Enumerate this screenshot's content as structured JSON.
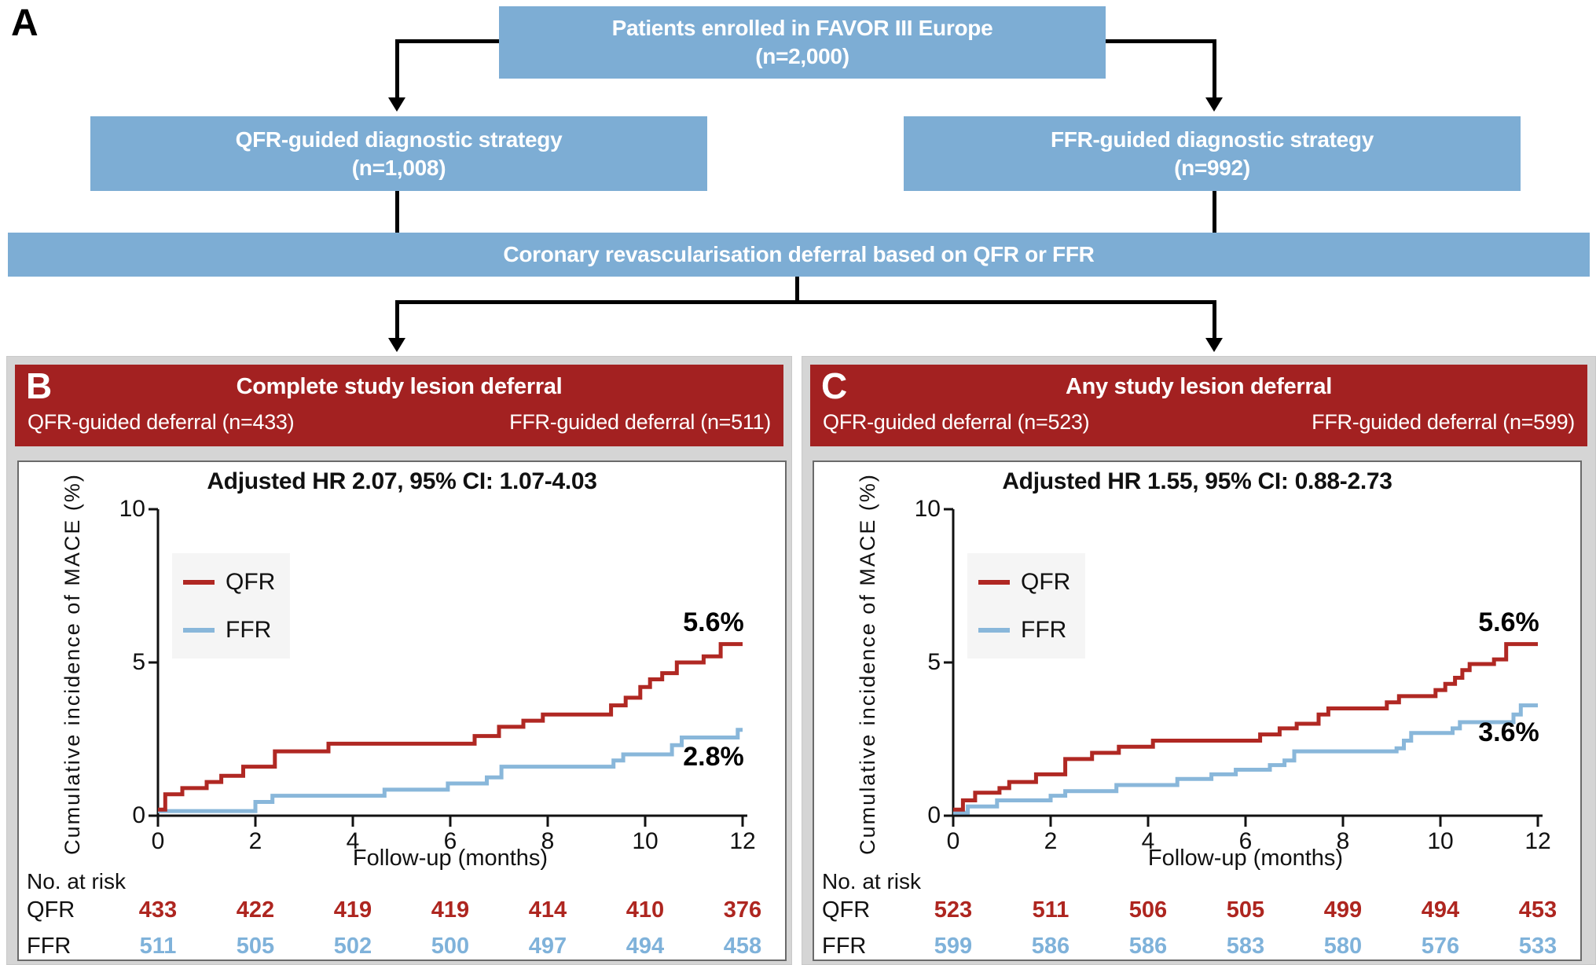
{
  "figure": {
    "panel_a_label": "A",
    "flowchart": {
      "top_box": {
        "line1": "Patients enrolled in FAVOR III Europe",
        "line2": "(n=2,000)"
      },
      "left_box": {
        "line1": "QFR-guided diagnostic strategy",
        "line2": "(n=1,008)"
      },
      "right_box": {
        "line1": "FFR-guided diagnostic strategy",
        "line2": "(n=992)"
      },
      "wide_box": {
        "line1": "Coronary revascularisation deferral based on QFR or FFR"
      }
    }
  },
  "colors": {
    "flow_blue": "#7dadd4",
    "header_red": "#a32121",
    "qfr_red": "#b02823",
    "ffr_blue": "#89b7da",
    "panel_gray": "#d5d5d5",
    "legend_bg": "#f5f5f5"
  },
  "panels": [
    {
      "label": "B",
      "title": "Complete study lesion deferral",
      "left_sub": "QFR-guided deferral (n=433)",
      "right_sub": "FFR-guided deferral (n=511)"
    },
    {
      "label": "C",
      "title": "Any study lesion deferral",
      "left_sub": "QFR-guided deferral (n=523)",
      "right_sub": "FFR-guided deferral (n=599)"
    }
  ],
  "chart_data": [
    {
      "type": "line",
      "subtype": "kaplan-meier-step",
      "title": "Adjusted HR 2.07, 95% CI: 1.07-4.03",
      "xlabel": "Follow-up (months)",
      "ylabel": "Cumulative incidence of MACE (%)",
      "xlim": [
        0,
        12
      ],
      "ylim": [
        0,
        10
      ],
      "xticks": [
        0,
        2,
        4,
        6,
        8,
        10,
        12
      ],
      "yticks": [
        0,
        5,
        10
      ],
      "legend_position": "upper-left-inside",
      "grid": false,
      "series": [
        {
          "name": "QFR",
          "color": "#b02823",
          "end_label": "5.6%",
          "end_value_pct": 5.6,
          "points": [
            [
              0,
              0.2
            ],
            [
              0.15,
              0.7
            ],
            [
              0.5,
              0.9
            ],
            [
              1.0,
              1.1
            ],
            [
              1.3,
              1.3
            ],
            [
              1.75,
              1.6
            ],
            [
              2.4,
              2.1
            ],
            [
              3.5,
              2.35
            ],
            [
              6.5,
              2.6
            ],
            [
              7.0,
              2.9
            ],
            [
              7.5,
              3.1
            ],
            [
              7.9,
              3.3
            ],
            [
              9.3,
              3.6
            ],
            [
              9.6,
              3.85
            ],
            [
              9.9,
              4.2
            ],
            [
              10.1,
              4.45
            ],
            [
              10.35,
              4.65
            ],
            [
              10.65,
              5.0
            ],
            [
              11.2,
              5.2
            ],
            [
              11.55,
              5.6
            ],
            [
              12,
              5.6
            ]
          ]
        },
        {
          "name": "FFR",
          "color": "#89b7da",
          "end_label": "2.8%",
          "end_value_pct": 2.8,
          "points": [
            [
              0,
              0.15
            ],
            [
              2.0,
              0.45
            ],
            [
              2.35,
              0.65
            ],
            [
              4.65,
              0.85
            ],
            [
              5.95,
              1.05
            ],
            [
              6.75,
              1.25
            ],
            [
              7.05,
              1.6
            ],
            [
              9.35,
              1.8
            ],
            [
              9.55,
              2.0
            ],
            [
              10.55,
              2.3
            ],
            [
              10.75,
              2.55
            ],
            [
              11.9,
              2.8
            ],
            [
              12,
              2.8
            ]
          ]
        }
      ],
      "risk_table": {
        "header": "No. at risk",
        "rows": [
          {
            "name": "QFR",
            "color": "#ae2620",
            "values": [
              433,
              422,
              419,
              419,
              414,
              410,
              376
            ]
          },
          {
            "name": "FFR",
            "color": "#7fb2da",
            "values": [
              511,
              505,
              502,
              500,
              497,
              494,
              458
            ]
          }
        ]
      }
    },
    {
      "type": "line",
      "subtype": "kaplan-meier-step",
      "title": "Adjusted HR 1.55, 95% CI: 0.88-2.73",
      "xlabel": "Follow-up (months)",
      "ylabel": "Cumulative incidence of MACE (%)",
      "xlim": [
        0,
        12
      ],
      "ylim": [
        0,
        10
      ],
      "xticks": [
        0,
        2,
        4,
        6,
        8,
        10,
        12
      ],
      "yticks": [
        0,
        5,
        10
      ],
      "legend_position": "upper-left-inside",
      "grid": false,
      "series": [
        {
          "name": "QFR",
          "color": "#b02823",
          "end_label": "5.6%",
          "end_value_pct": 5.6,
          "points": [
            [
              0,
              0.2
            ],
            [
              0.2,
              0.5
            ],
            [
              0.45,
              0.75
            ],
            [
              0.95,
              0.9
            ],
            [
              1.15,
              1.1
            ],
            [
              1.7,
              1.35
            ],
            [
              2.3,
              1.85
            ],
            [
              2.85,
              2.05
            ],
            [
              3.4,
              2.25
            ],
            [
              4.1,
              2.45
            ],
            [
              6.3,
              2.65
            ],
            [
              6.7,
              2.85
            ],
            [
              7.05,
              3.0
            ],
            [
              7.5,
              3.3
            ],
            [
              7.7,
              3.5
            ],
            [
              8.9,
              3.7
            ],
            [
              9.15,
              3.9
            ],
            [
              9.9,
              4.1
            ],
            [
              10.1,
              4.3
            ],
            [
              10.3,
              4.5
            ],
            [
              10.45,
              4.75
            ],
            [
              10.6,
              4.95
            ],
            [
              11.1,
              5.1
            ],
            [
              11.35,
              5.6
            ],
            [
              12,
              5.6
            ]
          ]
        },
        {
          "name": "FFR",
          "color": "#89b7da",
          "end_label": "3.6%",
          "end_value_pct": 3.6,
          "points": [
            [
              0,
              0.1
            ],
            [
              0.3,
              0.3
            ],
            [
              0.9,
              0.5
            ],
            [
              2.0,
              0.65
            ],
            [
              2.3,
              0.8
            ],
            [
              3.35,
              1.0
            ],
            [
              4.6,
              1.2
            ],
            [
              5.3,
              1.35
            ],
            [
              5.8,
              1.5
            ],
            [
              6.5,
              1.65
            ],
            [
              6.8,
              1.8
            ],
            [
              7.0,
              2.1
            ],
            [
              9.1,
              2.2
            ],
            [
              9.25,
              2.45
            ],
            [
              9.4,
              2.7
            ],
            [
              10.25,
              2.85
            ],
            [
              10.4,
              3.05
            ],
            [
              11.5,
              3.3
            ],
            [
              11.65,
              3.6
            ],
            [
              12,
              3.6
            ]
          ]
        }
      ],
      "risk_table": {
        "header": "No. at risk",
        "rows": [
          {
            "name": "QFR",
            "color": "#ae2620",
            "values": [
              523,
              511,
              506,
              505,
              499,
              494,
              453
            ]
          },
          {
            "name": "FFR",
            "color": "#7fb2da",
            "values": [
              599,
              586,
              586,
              583,
              580,
              576,
              533
            ]
          }
        ]
      }
    }
  ]
}
